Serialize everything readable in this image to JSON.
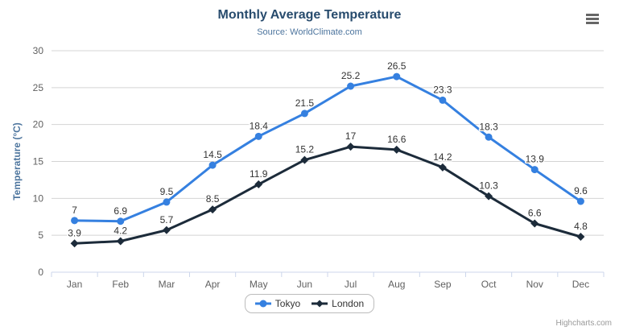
{
  "header": {
    "title": "Monthly Average Temperature",
    "subtitle": "Source: WorldClimate.com"
  },
  "credits": "Highcharts.com",
  "menu": {
    "icon": "hamburger-menu-icon"
  },
  "chart_data": {
    "type": "line",
    "title": "Monthly Average Temperature",
    "subtitle": "Source: WorldClimate.com",
    "categories": [
      "Jan",
      "Feb",
      "Mar",
      "Apr",
      "May",
      "Jun",
      "Jul",
      "Aug",
      "Sep",
      "Oct",
      "Nov",
      "Dec"
    ],
    "series": [
      {
        "name": "Tokyo",
        "marker": "circle",
        "color": "#3580e0",
        "values": [
          7,
          6.9,
          9.5,
          14.5,
          18.4,
          21.5,
          25.2,
          26.5,
          23.3,
          18.3,
          13.9,
          9.6
        ]
      },
      {
        "name": "London",
        "marker": "diamond",
        "color": "#1c2b3a",
        "values": [
          3.9,
          4.2,
          5.7,
          8.5,
          11.9,
          15.2,
          17,
          16.6,
          14.2,
          10.3,
          6.6,
          4.8
        ]
      }
    ],
    "xlabel": "",
    "ylabel": "Temperature (°C)",
    "ylim": [
      0,
      30
    ],
    "yticks": [
      0,
      5,
      10,
      15,
      20,
      25,
      30
    ],
    "grid": true,
    "data_labels": true,
    "legend_position": "bottom",
    "colors": {
      "title": "#274b6d",
      "subtitle": "#4d759e",
      "axis_title": "#4d759e",
      "tick_label": "#606060",
      "data_label": "#333333",
      "grid": "#d4d4d4",
      "axis_line": "#ccd6eb",
      "legend_text": "#333333",
      "credits": "#999999"
    }
  }
}
